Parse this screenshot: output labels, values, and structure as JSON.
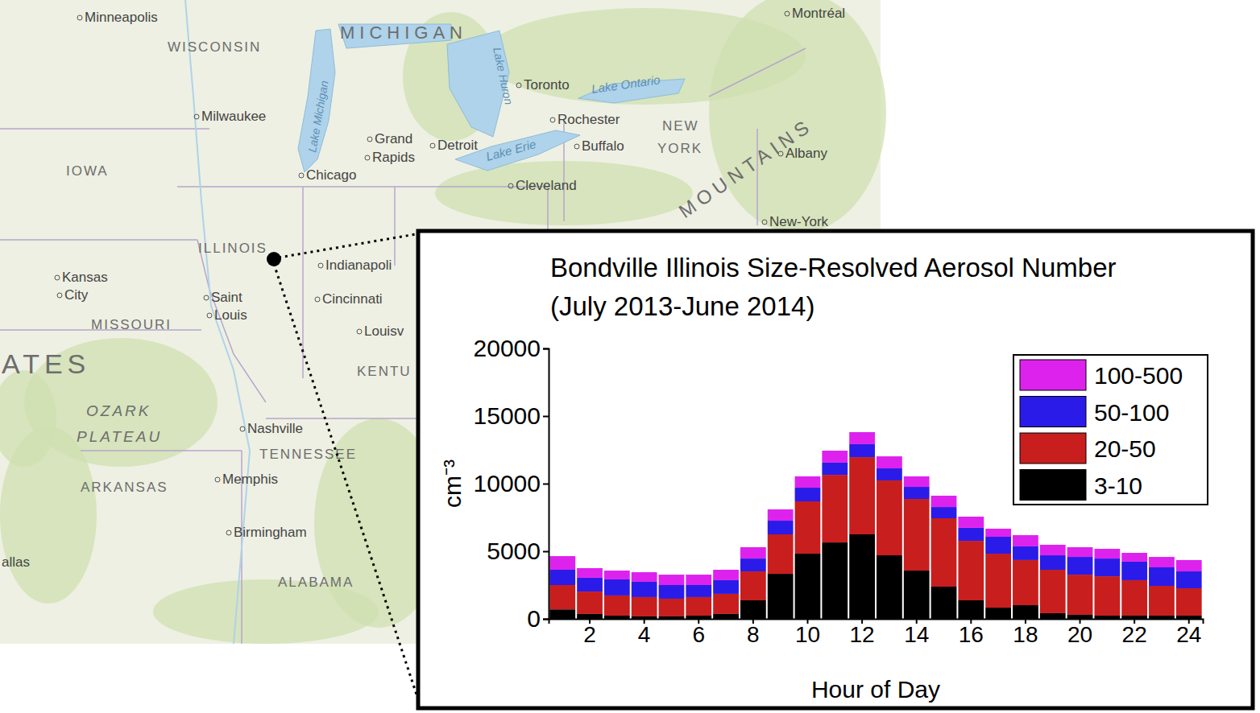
{
  "chart_data": {
    "type": "bar",
    "title": "Bondville Illinois Size-Resolved Aerosol Number (July 2013-June 2014)",
    "x_label": "Hour of Day",
    "y_label": "cm⁻³",
    "stacked": true,
    "legend": "top-right",
    "categories": [
      null,
      2,
      null,
      4,
      null,
      6,
      null,
      8,
      null,
      10,
      null,
      12,
      null,
      14,
      null,
      16,
      null,
      18,
      null,
      20,
      null,
      22,
      null,
      24
    ],
    "ylim": [
      0,
      20000
    ],
    "yticks": [
      0,
      5000,
      10000,
      15000,
      20000
    ],
    "series": [
      {
        "name": "3-10",
        "color": "#000000",
        "values": [
          700,
          360,
          240,
          180,
          180,
          240,
          360,
          1370,
          3330,
          4820,
          5650,
          6250,
          4700,
          3570,
          2380,
          1370,
          830,
          1010,
          420,
          300,
          240,
          240,
          240,
          240
        ]
      },
      {
        "name": "20-50",
        "color": "#c81e1e",
        "values": [
          1800,
          1660,
          1490,
          1430,
          1310,
          1370,
          1490,
          2140,
          2920,
          3870,
          5000,
          5710,
          5540,
          5300,
          5060,
          4400,
          3990,
          3340,
          3210,
          2970,
          2910,
          2620,
          2200,
          2020
        ]
      },
      {
        "name": "50-100",
        "color": "#2b1be8",
        "values": [
          1130,
          1020,
          1190,
          1130,
          1010,
          890,
          1010,
          950,
          1010,
          1010,
          900,
          960,
          890,
          890,
          830,
          960,
          1250,
          1010,
          1070,
          1310,
          1310,
          1370,
          1370,
          1250
        ]
      },
      {
        "name": "100-500",
        "color": "#dd22ee",
        "values": [
          1010,
          710,
          650,
          710,
          770,
          770,
          770,
          840,
          840,
          840,
          890,
          890,
          890,
          780,
          840,
          830,
          600,
          830,
          780,
          720,
          720,
          650,
          770,
          840
        ]
      }
    ]
  },
  "map": {
    "labels": [
      "Minneapolis",
      "WISCONSIN",
      "MICHIGAN",
      "Lake Michigan",
      "Lake Huron",
      "Montréal",
      "Toronto",
      "Lake Ontario",
      "Rochester",
      "NEW",
      "YORK",
      "Albany",
      "MOUNTAINS",
      "Milwaukee",
      "Grand",
      "Rapids",
      "Detroit",
      "Buffalo",
      "Lake Erie",
      "Chicago",
      "Cleveland",
      "IOWA",
      "ILLINOIS",
      "Kansas",
      "City",
      "Saint",
      "Louis",
      "Indianapoli",
      "Cincinnati",
      "Louisv",
      "MISSOURI",
      "ATES",
      "KENTU",
      "OZARK",
      "PLATEAU",
      "Nashville",
      "TENNESSEE",
      "ARKANSAS",
      "Memphis",
      "Birmingham",
      "ALABAMA",
      "allas",
      "New-York"
    ]
  }
}
